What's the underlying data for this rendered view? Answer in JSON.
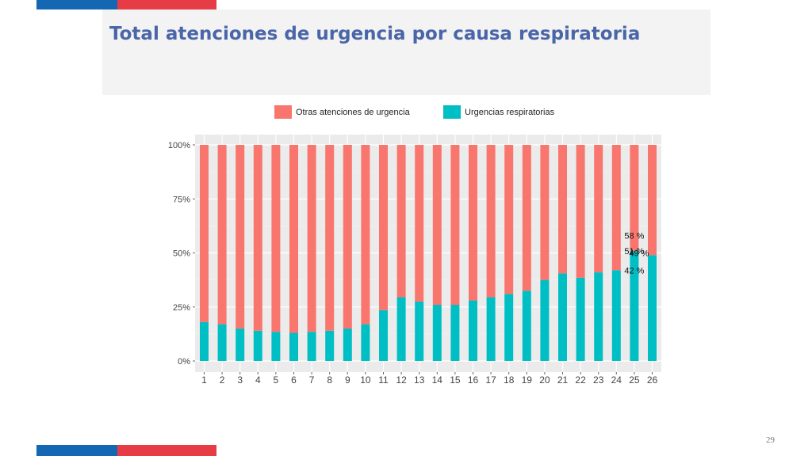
{
  "slide": {
    "title": "Total atenciones de urgencia por causa respiratoria",
    "page_number": "29"
  },
  "colors": {
    "accent_blue": "#1467b3",
    "accent_red": "#e63c45",
    "title": "#4a66a8",
    "otras": "#f8766d",
    "respiratorias": "#00bfc4",
    "panel": "#ebebeb"
  },
  "chart_data": {
    "type": "bar",
    "stacked": true,
    "normalized": true,
    "categories": [
      "1",
      "2",
      "3",
      "4",
      "5",
      "6",
      "7",
      "8",
      "9",
      "10",
      "11",
      "12",
      "13",
      "14",
      "15",
      "16",
      "17",
      "18",
      "19",
      "20",
      "21",
      "22",
      "23",
      "24",
      "25",
      "26"
    ],
    "series": [
      {
        "name": "Otras atenciones de urgencia",
        "values": [
          82,
          83,
          85,
          86,
          86.5,
          87,
          86.5,
          86,
          85,
          83,
          76.5,
          70.5,
          72.5,
          74,
          74,
          72,
          70.5,
          69,
          67.5,
          62.5,
          59.5,
          61.5,
          59,
          58,
          49,
          51
        ]
      },
      {
        "name": "Urgencias respiratorias",
        "values": [
          18,
          17,
          15,
          14,
          13.5,
          13,
          13.5,
          14,
          15,
          17,
          23.5,
          29.5,
          27.5,
          26,
          26,
          28,
          29.5,
          31,
          32.5,
          37.5,
          40.5,
          38.5,
          41,
          42,
          51,
          49
        ]
      }
    ],
    "yticks": [
      "0%",
      "25%",
      "50%",
      "75%",
      "100%"
    ],
    "ylim": [
      0,
      100
    ],
    "grid": true,
    "legend": "top",
    "annotations": [
      {
        "category": "25",
        "text": "58 %",
        "y": 58
      },
      {
        "category": "25",
        "text": "51 %",
        "y": 51
      },
      {
        "category": "25",
        "text": "49 %",
        "y": 50
      },
      {
        "category": "25",
        "text": "42 %",
        "y": 42
      }
    ]
  }
}
